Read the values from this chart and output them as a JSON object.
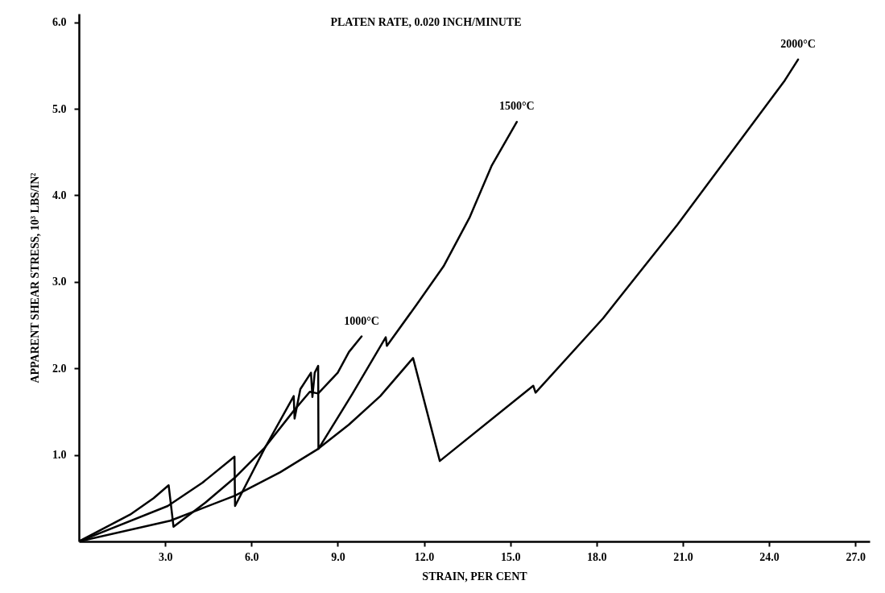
{
  "chart_data": {
    "type": "line",
    "title": "PLATEN RATE, 0.020 INCH/MINUTE",
    "xlabel": "STRAIN, PER CENT",
    "ylabel": "APPARENT SHEAR STRESS, 10³ LBS/IN²",
    "xlim": [
      0,
      27.5
    ],
    "ylim": [
      0,
      6.1
    ],
    "xticks": [
      {
        "value": 3,
        "label": "3.0"
      },
      {
        "value": 6,
        "label": "6.0"
      },
      {
        "value": 9,
        "label": "9.0"
      },
      {
        "value": 12,
        "label": "12.0"
      },
      {
        "value": 15,
        "label": "15.0"
      },
      {
        "value": 18,
        "label": "18.0"
      },
      {
        "value": 21,
        "label": "21.0"
      },
      {
        "value": 24,
        "label": "24.0"
      },
      {
        "value": 27,
        "label": "27.0"
      }
    ],
    "yticks": [
      {
        "value": 1,
        "label": "1.0"
      },
      {
        "value": 2,
        "label": "2.0"
      },
      {
        "value": 3,
        "label": "3.0"
      },
      {
        "value": 4,
        "label": "4.0"
      },
      {
        "value": 5,
        "label": "5.0"
      },
      {
        "value": 6,
        "label": "6.0"
      }
    ],
    "grid": false,
    "marker": "none",
    "line_style": "solid",
    "series": [
      {
        "name": "1000°C",
        "color": "#000000",
        "x": [
          0,
          1.78,
          2.6,
          3.12,
          3.29,
          4.4,
          5.43,
          6.45,
          7.47,
          8.03,
          8.32,
          9.0,
          9.39,
          9.83
        ],
        "values": [
          0,
          0.31,
          0.5,
          0.65,
          0.17,
          0.45,
          0.74,
          1.08,
          1.51,
          1.73,
          1.71,
          1.95,
          2.19,
          2.37
        ]
      },
      {
        "name": "1500°C",
        "color": "#000000",
        "x": [
          0,
          3.09,
          4.3,
          5.41,
          5.43,
          6.45,
          7.47,
          7.5,
          7.7,
          8.07,
          8.12,
          8.2,
          8.32,
          8.33,
          9.5,
          10.67,
          10.71,
          11.77,
          12.68,
          13.58,
          14.35,
          15.23
        ],
        "values": [
          0,
          0.41,
          0.68,
          0.98,
          0.41,
          1.07,
          1.68,
          1.42,
          1.76,
          1.95,
          1.67,
          1.95,
          2.03,
          1.07,
          1.7,
          2.36,
          2.26,
          2.75,
          3.18,
          3.74,
          4.34,
          4.85
        ]
      },
      {
        "name": "2000°C",
        "color": "#000000",
        "x": [
          0,
          3.18,
          5.43,
          7.0,
          8.32,
          9.39,
          10.48,
          11.62,
          12.55,
          15.8,
          15.88,
          18.23,
          20.81,
          24.55,
          25.01
        ],
        "values": [
          0,
          0.24,
          0.53,
          0.8,
          1.07,
          1.35,
          1.68,
          2.12,
          0.93,
          1.8,
          1.72,
          2.58,
          3.66,
          5.33,
          5.57
        ]
      }
    ]
  }
}
